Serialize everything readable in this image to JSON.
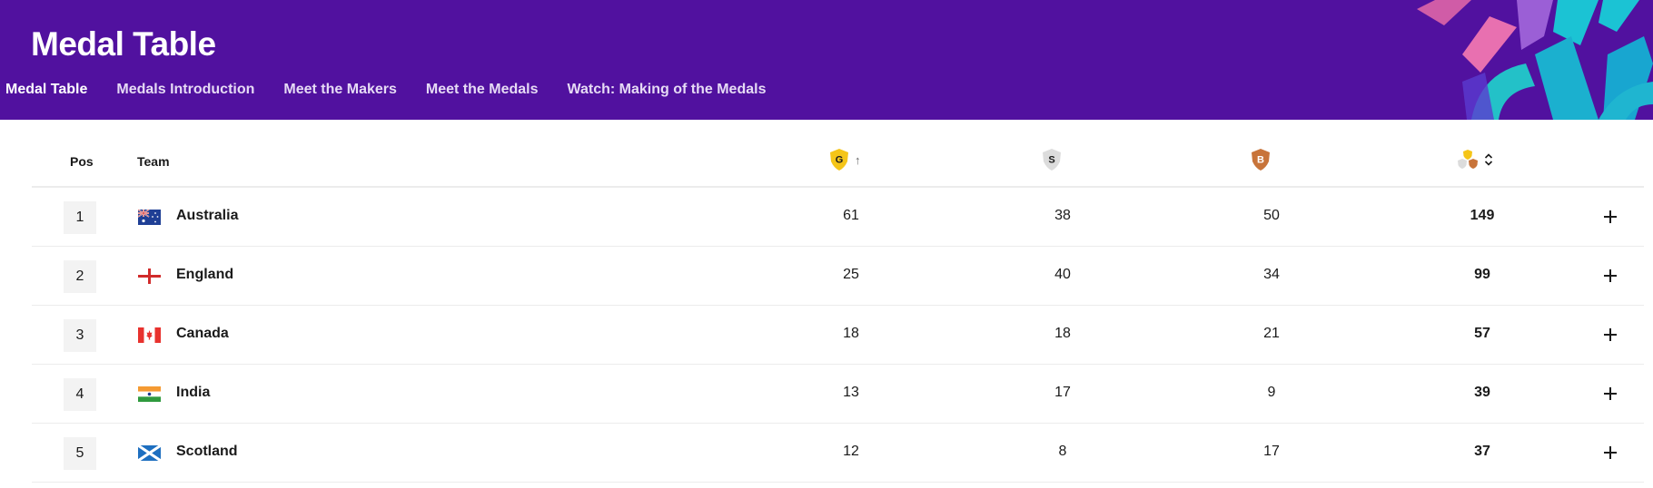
{
  "header": {
    "title": "Medal Table",
    "nav": [
      {
        "label": "Medal Table",
        "active": true
      },
      {
        "label": "Medals Introduction",
        "active": false
      },
      {
        "label": "Meet the Makers",
        "active": false
      },
      {
        "label": "Meet the Medals",
        "active": false
      },
      {
        "label": "Watch: Making of the Medals",
        "active": false
      }
    ]
  },
  "table": {
    "columns": {
      "pos": "Pos",
      "team": "Team",
      "gold": "G",
      "silver": "S",
      "bronze": "B"
    },
    "sort": {
      "column": "gold",
      "direction": "ascending-arrow-icon"
    },
    "rows": [
      {
        "pos": "1",
        "team": "Australia",
        "flag": "australia-flag",
        "gold": "61",
        "silver": "38",
        "bronze": "50",
        "total": "149"
      },
      {
        "pos": "2",
        "team": "England",
        "flag": "england-flag",
        "gold": "25",
        "silver": "40",
        "bronze": "34",
        "total": "99"
      },
      {
        "pos": "3",
        "team": "Canada",
        "flag": "canada-flag",
        "gold": "18",
        "silver": "18",
        "bronze": "21",
        "total": "57"
      },
      {
        "pos": "4",
        "team": "India",
        "flag": "india-flag",
        "gold": "13",
        "silver": "17",
        "bronze": "9",
        "total": "39"
      },
      {
        "pos": "5",
        "team": "Scotland",
        "flag": "scotland-flag",
        "gold": "12",
        "silver": "8",
        "bronze": "17",
        "total": "37"
      }
    ]
  },
  "colors": {
    "header_bg": "#51119f",
    "gold": "#f5c518",
    "silver": "#d9d9d9",
    "bronze": "#c8743a"
  }
}
